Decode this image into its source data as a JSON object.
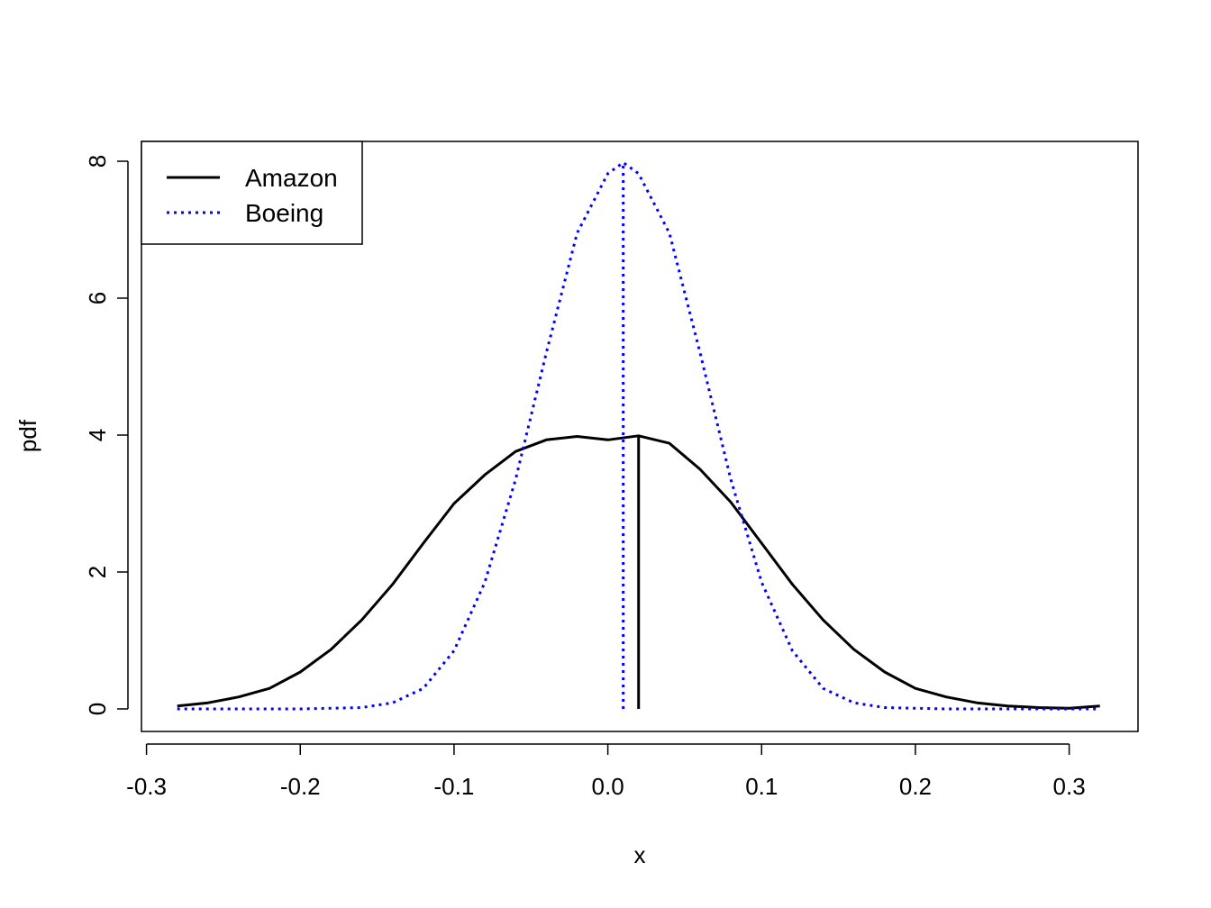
{
  "chart_data": {
    "type": "line",
    "title": "",
    "xlabel": "x",
    "ylabel": "pdf",
    "xlim": [
      -0.3,
      0.32
    ],
    "ylim": [
      0,
      8
    ],
    "x_ticks": [
      -0.3,
      -0.2,
      -0.1,
      0.0,
      0.1,
      0.2,
      0.3
    ],
    "x_tick_labels": [
      "-0.3",
      "-0.2",
      "-0.1",
      "0.0",
      "0.1",
      "0.2",
      "0.3"
    ],
    "y_ticks": [
      0,
      2,
      4,
      6,
      8
    ],
    "y_tick_labels": [
      "0",
      "2",
      "4",
      "6",
      "8"
    ],
    "grid": false,
    "legend_position": "top-left",
    "legend": [
      {
        "label": "Amazon",
        "color": "#000000",
        "style": "solid"
      },
      {
        "label": "Boeing",
        "color": "#0000ff",
        "style": "dotted"
      }
    ],
    "series": [
      {
        "name": "Amazon",
        "color": "#000000",
        "style": "solid",
        "x": [
          -0.28,
          -0.26,
          -0.24,
          -0.22,
          -0.2,
          -0.18,
          -0.16,
          -0.14,
          -0.12,
          -0.1,
          -0.08,
          -0.06,
          -0.04,
          -0.02,
          0.0,
          0.02,
          0.04,
          0.06,
          0.08,
          0.1,
          0.12,
          0.14,
          0.16,
          0.18,
          0.2,
          0.22,
          0.24,
          0.26,
          0.28,
          0.3,
          0.32
        ],
        "y": [
          0.044,
          0.09,
          0.175,
          0.3,
          0.54,
          0.87,
          1.3,
          1.82,
          2.42,
          3.0,
          3.42,
          3.76,
          3.93,
          3.98,
          3.93,
          3.99,
          3.88,
          3.5,
          3.02,
          2.42,
          1.82,
          1.3,
          0.87,
          0.54,
          0.3,
          0.175,
          0.09,
          0.044,
          0.02,
          0.01,
          0.044
        ]
      },
      {
        "name": "Boeing",
        "color": "#0000ff",
        "style": "dotted",
        "x": [
          -0.28,
          -0.2,
          -0.16,
          -0.14,
          -0.12,
          -0.1,
          -0.08,
          -0.06,
          -0.04,
          -0.02,
          0.0,
          0.01,
          0.02,
          0.04,
          0.06,
          0.08,
          0.1,
          0.12,
          0.14,
          0.16,
          0.18,
          0.22,
          0.32
        ],
        "y": [
          0.0,
          0.0,
          0.02,
          0.09,
          0.3,
          0.85,
          1.85,
          3.35,
          5.2,
          6.95,
          7.82,
          7.98,
          7.82,
          6.95,
          5.2,
          3.35,
          1.85,
          0.85,
          0.3,
          0.09,
          0.02,
          0.0,
          0.0
        ]
      }
    ],
    "vertical_lines": [
      {
        "series": "Amazon",
        "x": 0.02,
        "y_from": 0,
        "y_to": 3.99,
        "color": "#000000",
        "style": "solid"
      },
      {
        "series": "Boeing",
        "x": 0.01,
        "y_from": 0,
        "y_to": 7.98,
        "color": "#0000ff",
        "style": "dotted"
      }
    ]
  }
}
